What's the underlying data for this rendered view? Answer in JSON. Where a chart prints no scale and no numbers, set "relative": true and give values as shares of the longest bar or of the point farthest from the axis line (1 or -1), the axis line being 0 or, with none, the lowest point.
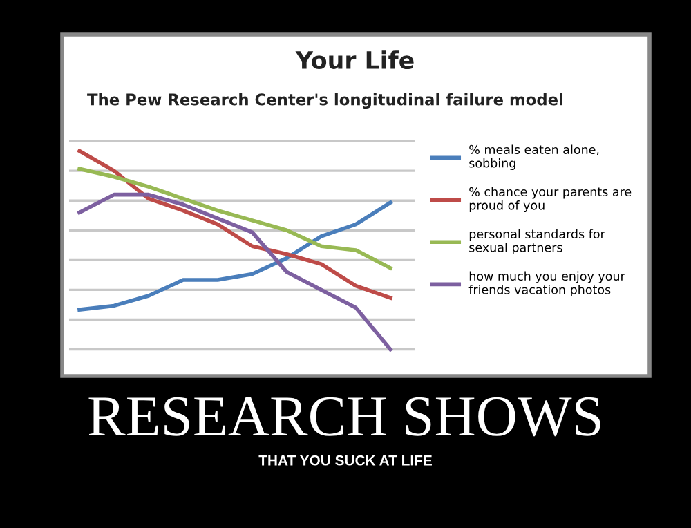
{
  "chart_data": {
    "type": "line",
    "title": "Your Life",
    "subtitle": "The Pew Research Center's longitudinal failure model",
    "categories": [
      null,
      null,
      null,
      null,
      null,
      null,
      null,
      null,
      null,
      null
    ],
    "relative": true,
    "grid": "y",
    "legend": "right",
    "marker": "none",
    "line_style": "solid",
    "series": [
      {
        "name": "% meals eaten alone, sobbing",
        "color": "#4a7ebb",
        "values": [
          0.2,
          0.22,
          0.27,
          0.35,
          0.35,
          0.38,
          0.46,
          0.57,
          0.63,
          0.74
        ]
      },
      {
        "name": "% chance your parents are proud of you",
        "color": "#be4b48",
        "values": [
          1.0,
          0.9,
          0.76,
          0.7,
          0.63,
          0.52,
          0.48,
          0.43,
          0.32,
          0.26
        ]
      },
      {
        "name": "personal standards for sexual partners",
        "color": "#98b954",
        "values": [
          0.91,
          0.87,
          0.82,
          0.76,
          0.7,
          0.65,
          0.6,
          0.52,
          0.5,
          0.41
        ]
      },
      {
        "name": "how much you enjoy your friends vacation photos",
        "color": "#7d60a0",
        "values": [
          0.69,
          0.78,
          0.78,
          0.73,
          0.66,
          0.59,
          0.39,
          0.3,
          0.21,
          0.0
        ]
      }
    ],
    "annotations": [
      "RESEARCH SHOWS",
      "THAT YOU SUCK AT LIFE"
    ]
  }
}
